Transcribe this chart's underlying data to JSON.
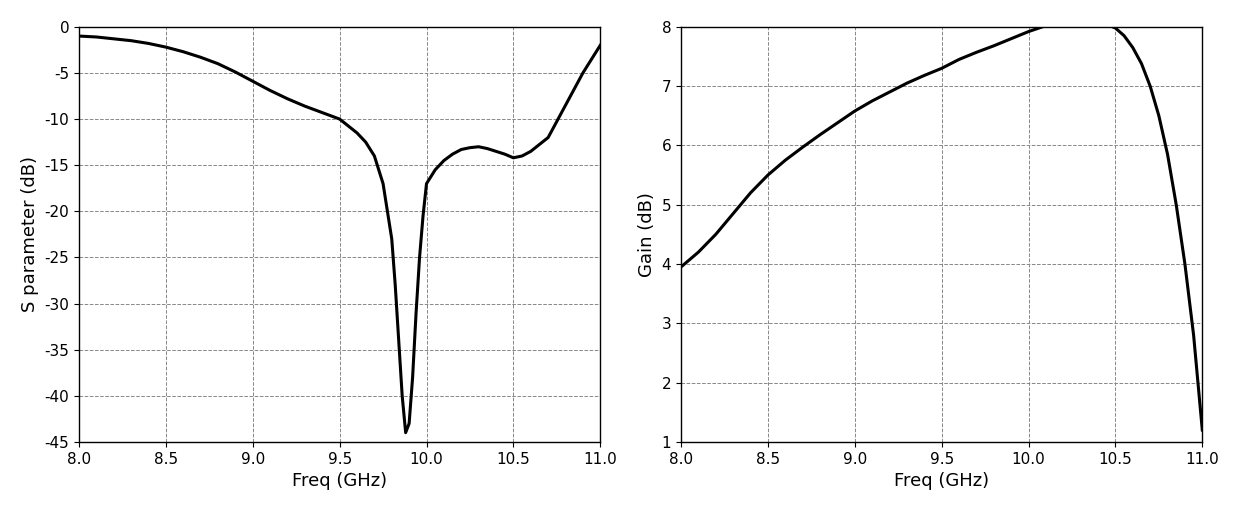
{
  "s_param": {
    "xlabel": "Freq (GHz)",
    "ylabel": "S parameter (dB)",
    "xlim": [
      8.0,
      11.0
    ],
    "ylim": [
      -45,
      0
    ],
    "yticks": [
      0,
      -5,
      -10,
      -15,
      -20,
      -25,
      -30,
      -35,
      -40,
      -45
    ],
    "xticks": [
      8.0,
      8.5,
      9.0,
      9.5,
      10.0,
      10.5,
      11.0
    ],
    "line_color": "#000000",
    "line_width": 2.2
  },
  "gain": {
    "xlabel": "Freq (GHz)",
    "ylabel": "Gain (dB)",
    "xlim": [
      8.0,
      11.0
    ],
    "ylim": [
      1,
      8
    ],
    "yticks": [
      1,
      2,
      3,
      4,
      5,
      6,
      7,
      8
    ],
    "xticks": [
      8.0,
      8.5,
      9.0,
      9.5,
      10.0,
      10.5,
      11.0
    ],
    "line_color": "#000000",
    "line_width": 2.2
  },
  "background_color": "#ffffff",
  "grid_color": "#888888",
  "grid_linestyle": "--",
  "grid_linewidth": 0.7
}
